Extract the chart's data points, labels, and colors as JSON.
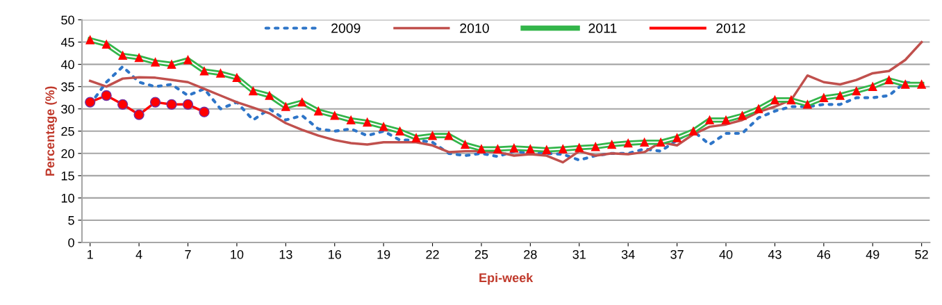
{
  "chart_data": {
    "type": "line",
    "xlabel": "Epi-week",
    "ylabel": "Percentage (%)",
    "x": [
      1,
      2,
      3,
      4,
      5,
      6,
      7,
      8,
      9,
      10,
      11,
      12,
      13,
      14,
      15,
      16,
      17,
      18,
      19,
      20,
      21,
      22,
      23,
      24,
      25,
      26,
      27,
      28,
      29,
      30,
      31,
      32,
      33,
      34,
      35,
      36,
      37,
      38,
      39,
      40,
      41,
      42,
      43,
      44,
      45,
      46,
      47,
      48,
      49,
      50,
      51,
      52
    ],
    "xlim": [
      0.5,
      52.5
    ],
    "xticks": [
      1,
      4,
      7,
      10,
      13,
      16,
      19,
      22,
      25,
      28,
      31,
      34,
      37,
      40,
      43,
      46,
      49,
      52
    ],
    "ylim": [
      0,
      50
    ],
    "yticks": [
      0,
      5,
      10,
      15,
      20,
      25,
      30,
      35,
      40,
      45,
      50
    ],
    "grid": "y",
    "legend": "top",
    "series": [
      {
        "name": "2009",
        "color": "#2e75c8",
        "line_style": "dotted",
        "marker": "none",
        "values": [
          31,
          36,
          39.5,
          36,
          35,
          35.5,
          33,
          34.5,
          30,
          31.5,
          27.5,
          30,
          27.5,
          28.5,
          25.5,
          25,
          25.5,
          24,
          25,
          23,
          23,
          22.5,
          20,
          19.5,
          20,
          19.3,
          20.5,
          20,
          20,
          19.8,
          18.5,
          19.5,
          20,
          20,
          21,
          20.5,
          23,
          25,
          22,
          24.5,
          24.5,
          28,
          29.5,
          30.5,
          30.5,
          31,
          31,
          32.5,
          32.5,
          33,
          36,
          35.5
        ]
      },
      {
        "name": "2010",
        "color": "#c0504d",
        "line_style": "solid",
        "marker": "none",
        "values": [
          36.3,
          35,
          36.8,
          37.1,
          37,
          36.5,
          36,
          34.5,
          33,
          31.5,
          30.3,
          29,
          26.8,
          25.3,
          24,
          23,
          22.3,
          22,
          22.5,
          22.5,
          22.5,
          21.8,
          20.3,
          20.5,
          20.5,
          20.3,
          19.5,
          19.8,
          19.5,
          18,
          20.5,
          19.5,
          20,
          19.8,
          20.3,
          22.5,
          21.8,
          24.3,
          26,
          26.5,
          27.5,
          29.3,
          30.5,
          32,
          37.5,
          36,
          35.5,
          36.5,
          38,
          38.5,
          41,
          45
        ]
      },
      {
        "name": "2011",
        "color": "#33b54a",
        "line_style": "solid",
        "marker": "triangle",
        "values": [
          45.5,
          44.5,
          42,
          41.5,
          40.5,
          40,
          41,
          38.5,
          38,
          37,
          34,
          33,
          30.5,
          31.5,
          29.5,
          28.5,
          27.5,
          27,
          26,
          25,
          23.5,
          24,
          24,
          22,
          21,
          21,
          21.2,
          21,
          20.8,
          21,
          21.3,
          21.5,
          22,
          22.3,
          22.5,
          22.5,
          23.5,
          25,
          27.5,
          27.5,
          28.5,
          30,
          32,
          32,
          31,
          32.5,
          33,
          34,
          35,
          36.5,
          35.5,
          35.5
        ]
      },
      {
        "name": "2012",
        "color": "#ff0000",
        "line_style": "solid",
        "marker": "circle",
        "values": [
          31.5,
          33,
          31,
          28.7,
          31.5,
          31,
          31,
          29.3,
          null,
          null,
          null,
          null,
          null,
          null,
          null,
          null,
          null,
          null,
          null,
          null,
          null,
          null,
          null,
          null,
          null,
          null,
          null,
          null,
          null,
          null,
          null,
          null,
          null,
          null,
          null,
          null,
          null,
          null,
          null,
          null,
          null,
          null,
          null,
          null,
          null,
          null,
          null,
          null,
          null,
          null,
          null,
          null
        ]
      }
    ]
  }
}
